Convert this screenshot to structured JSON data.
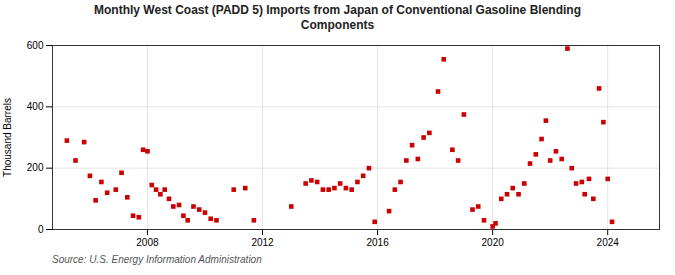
{
  "chart_data": {
    "type": "scatter",
    "title": "Monthly West Coast (PADD 5) Imports from Japan of Conventional Gasoline Blending\nComponents",
    "ylabel": "Thousand Barrels",
    "source": "Source: U.S. Energy Information Administration",
    "color": "#cc0000",
    "marker": "square",
    "xlim": [
      2004.7,
      2025.8
    ],
    "xticks": [
      2008,
      2012,
      2016,
      2020,
      2024
    ],
    "ylim": [
      0,
      600
    ],
    "yticks": [
      0,
      200,
      400,
      600
    ],
    "grid": true,
    "x": [
      2005.2,
      2005.5,
      2005.8,
      2006.0,
      2006.2,
      2006.4,
      2006.6,
      2006.9,
      2007.1,
      2007.3,
      2007.5,
      2007.7,
      2007.85,
      2008.0,
      2008.15,
      2008.3,
      2008.45,
      2008.6,
      2008.75,
      2008.9,
      2009.1,
      2009.25,
      2009.4,
      2009.6,
      2009.8,
      2010.0,
      2010.2,
      2010.4,
      2011.0,
      2011.4,
      2011.7,
      2013.0,
      2013.5,
      2013.7,
      2013.9,
      2014.1,
      2014.3,
      2014.5,
      2014.7,
      2014.9,
      2015.1,
      2015.3,
      2015.5,
      2015.7,
      2015.9,
      2016.4,
      2016.6,
      2016.8,
      2017.0,
      2017.2,
      2017.4,
      2017.6,
      2017.8,
      2018.1,
      2018.3,
      2018.6,
      2018.8,
      2019.0,
      2019.3,
      2019.5,
      2019.7,
      2020.0,
      2020.1,
      2020.3,
      2020.5,
      2020.7,
      2020.9,
      2021.1,
      2021.3,
      2021.5,
      2021.7,
      2021.85,
      2022.0,
      2022.2,
      2022.4,
      2022.6,
      2022.75,
      2022.9,
      2023.1,
      2023.2,
      2023.35,
      2023.5,
      2023.7,
      2023.85,
      2024.0,
      2024.15
    ],
    "values": [
      290,
      225,
      285,
      175,
      95,
      155,
      120,
      130,
      185,
      105,
      45,
      40,
      260,
      255,
      145,
      130,
      115,
      130,
      100,
      75,
      80,
      45,
      30,
      75,
      65,
      55,
      35,
      30,
      130,
      135,
      30,
      75,
      150,
      160,
      155,
      130,
      130,
      135,
      150,
      135,
      130,
      155,
      175,
      200,
      25,
      60,
      130,
      155,
      225,
      275,
      230,
      300,
      315,
      450,
      555,
      260,
      225,
      375,
      65,
      75,
      30,
      10,
      20,
      100,
      115,
      135,
      115,
      150,
      215,
      245,
      295,
      355,
      225,
      255,
      230,
      590,
      200,
      150,
      155,
      115,
      165,
      100,
      460,
      350,
      165,
      25
    ]
  }
}
